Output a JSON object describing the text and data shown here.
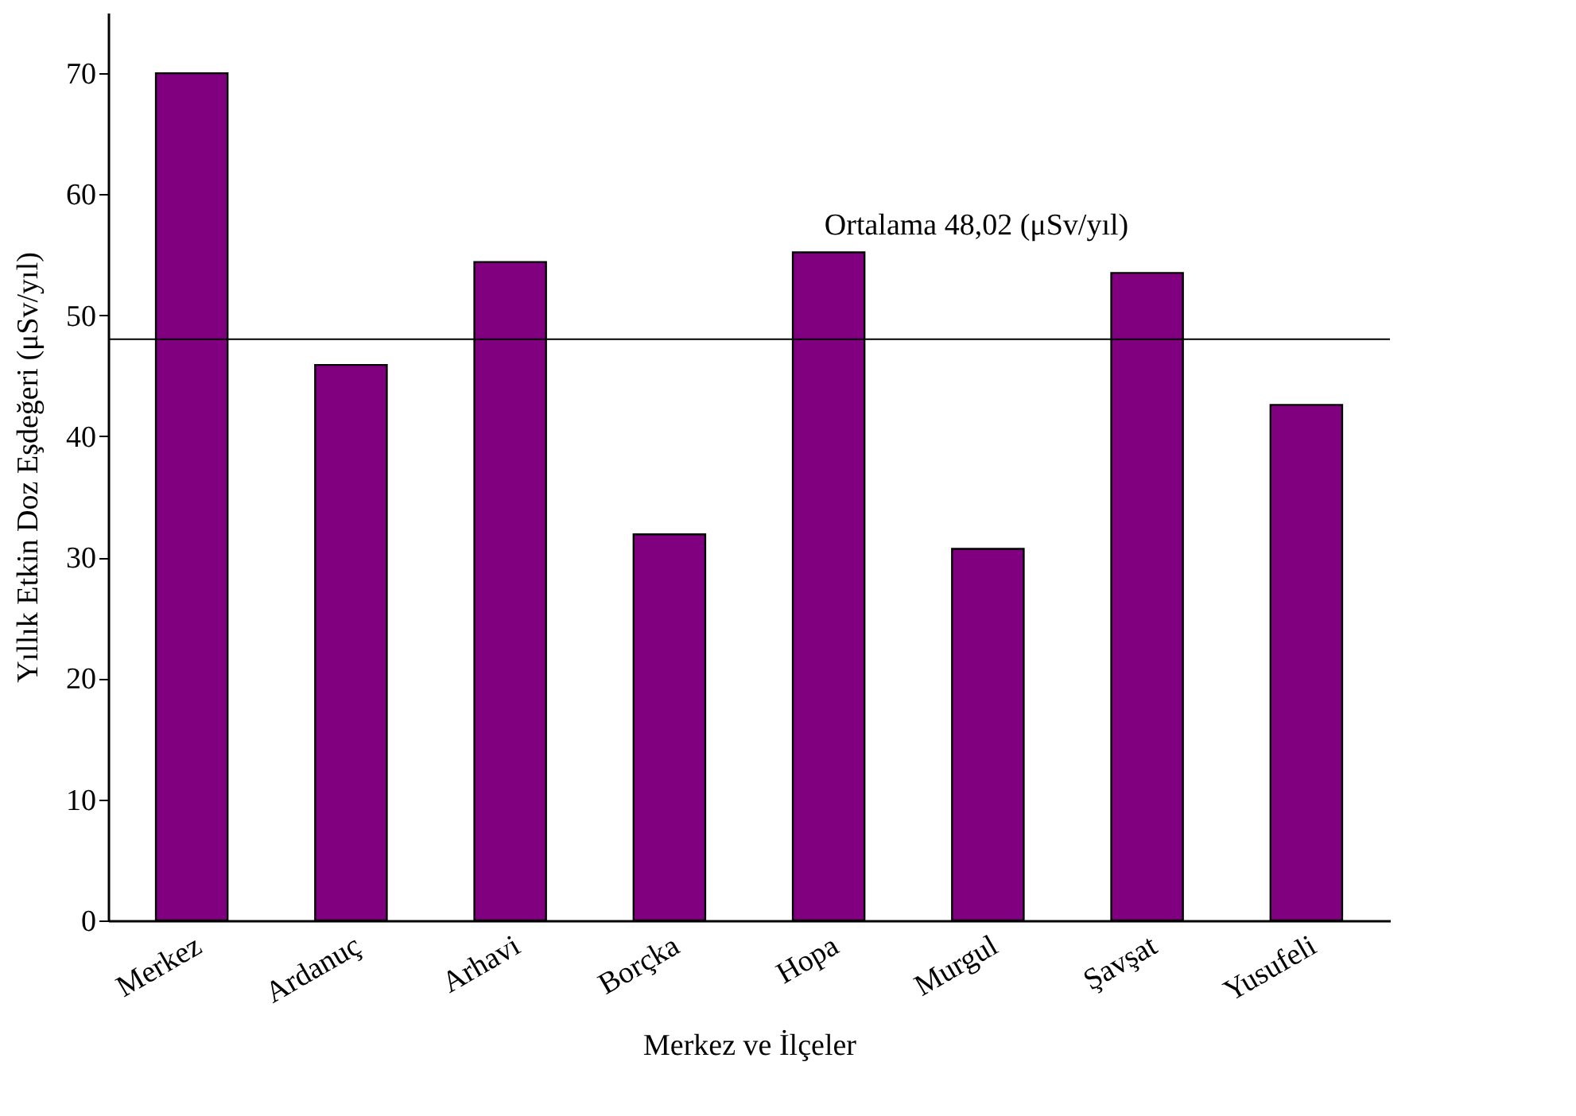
{
  "chart_data": {
    "type": "bar",
    "xlabel": "Merkez ve İlçeler",
    "ylabel": "Yıllık Etkin Doz Eşdeğeri (μSv/yıl)",
    "categories": [
      "Merkez",
      "Ardanuç",
      "Arhavi",
      "Borçka",
      "Hopa",
      "Murgul",
      "Şavşat",
      "Yusufeli"
    ],
    "values": [
      70,
      45.9,
      54.4,
      31.9,
      55.2,
      30.7,
      53.5,
      42.6
    ],
    "color": "#800080",
    "ylim": [
      0,
      75
    ],
    "yticks": [
      0,
      10,
      20,
      30,
      40,
      50,
      60,
      70
    ],
    "ref_lines": [
      {
        "axis": "y",
        "value": 48.02,
        "label": "Ortalama 48,02 (μSv/yıl)",
        "color": "#000000"
      }
    ],
    "grid": false
  }
}
